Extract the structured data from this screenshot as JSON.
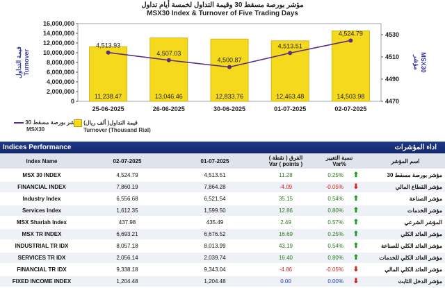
{
  "chart_data": {
    "type": "bar",
    "title_ar": "مؤشر بورصة مسقط 30 وقيمة التداول لخمسة أيام تداول",
    "title": "MSX30 Index & Turnover of Five Trading Days",
    "categories": [
      "25-06-2025",
      "26-06-2025",
      "30-06-2025",
      "01-07-2025",
      "02-07-2025"
    ],
    "series": [
      {
        "name": "Turnover (Thousand Rial)",
        "name_ar": "قيمة التداول( ألف ريال)",
        "kind": "bar",
        "color": "#f4d91c",
        "values": [
          11238.47,
          13046.46,
          12833.76,
          12463.48,
          14503.98
        ],
        "labels": [
          "11,238.47",
          "13,046.46",
          "12,833.76",
          "12,463.48",
          "14,503.98"
        ]
      },
      {
        "name": "MSX30",
        "name_ar": "مؤشر بورصة مسقط 30",
        "kind": "line",
        "color": "#5b2c82",
        "values": [
          4513.93,
          4507.03,
          4500.87,
          4513.51,
          4524.79
        ],
        "labels": [
          "4,513.93",
          "4,507.03",
          "4,500.87",
          "4,513.51",
          "4,524.79"
        ]
      }
    ],
    "yleft": {
      "label_ar": "قيمة التداول",
      "label": "Turnover",
      "range": [
        0,
        16000000
      ],
      "ticks": [
        "0",
        "2,000,000",
        "4,000,000",
        "6,000,000",
        "8,000,000",
        "10,000,000",
        "12,000,000",
        "14,000,000",
        "16,000,000"
      ]
    },
    "yright": {
      "label_ar": "مؤشر",
      "label": "MSX30",
      "range": [
        4470,
        4540
      ],
      "ticks": [
        "4470",
        "4490",
        "4510",
        "4530"
      ]
    }
  },
  "band": {
    "left": "Indices Performance",
    "right": "اداء المؤشرات"
  },
  "table": {
    "headers": {
      "index_name": "Index Name",
      "d1": "02-07-2025",
      "d2": "01-07-2025",
      "var_ar": "الفرق ( نقطة )",
      "var_en": "Var ( points )",
      "pct_ar": "نسبة التغيير",
      "pct_en": "Var%",
      "name_ar": "اسم المؤشر"
    },
    "rows": [
      {
        "en": "MSX 30 INDEX",
        "d1": "4,524.79",
        "d2": "4,513.51",
        "var": "11.28",
        "pct": "0.25%",
        "dir": "up",
        "ar": "مؤشر بورصة مسقط 30"
      },
      {
        "en": "FINANCIAL INDEX",
        "d1": "7,860.19",
        "d2": "7,864.28",
        "var": "-4.09",
        "pct": "-0.05%",
        "dir": "dn",
        "ar": "مؤشر القطاع المالي"
      },
      {
        "en": "Industry Index",
        "d1": "6,556.68",
        "d2": "6,521.54",
        "var": "35.15",
        "pct": "0.54%",
        "dir": "up",
        "ar": "مؤشر الصناعة"
      },
      {
        "en": "Services Index",
        "d1": "1,612.35",
        "d2": "1,599.50",
        "var": "12.86",
        "pct": "0.80%",
        "dir": "up",
        "ar": "مؤشر الخدمات"
      },
      {
        "en": "MSX Shariah Index",
        "d1": "437.98",
        "d2": "435.49",
        "var": "2.49",
        "pct": "0.57%",
        "dir": "up",
        "ar": "المؤشر الشرعي"
      },
      {
        "en": "MSX TR INDEX",
        "d1": "6,693.21",
        "d2": "6,676.52",
        "var": "16.69",
        "pct": "0.25%",
        "dir": "up",
        "ar": "مؤشر العائد الكلي"
      },
      {
        "en": "INDUSTRIAL TR IDX",
        "d1": "8,057.18",
        "d2": "8,013.99",
        "var": "43.19",
        "pct": "0.54%",
        "dir": "up",
        "ar": "مؤشر العائد الكلي للصناعة"
      },
      {
        "en": "SERVICES TR IDX",
        "d1": "2,056.14",
        "d2": "2,039.74",
        "var": "16.40",
        "pct": "0.80%",
        "dir": "up",
        "ar": "مؤشر العائد الكلي للخدمات"
      },
      {
        "en": "FINANCIAL TR IDX",
        "d1": "9,338.18",
        "d2": "9,343.04",
        "var": "-4.86",
        "pct": "-0.05%",
        "dir": "dn",
        "ar": "مؤشر العائد الكلي المالي"
      },
      {
        "en": "FIXED INCOME INDEX",
        "d1": "1,204.48",
        "d2": "1,204.48",
        "var": "0.00",
        "pct": "0.00%",
        "dir": "dn",
        "ar": "مؤشر الدخل الثابت"
      }
    ]
  }
}
